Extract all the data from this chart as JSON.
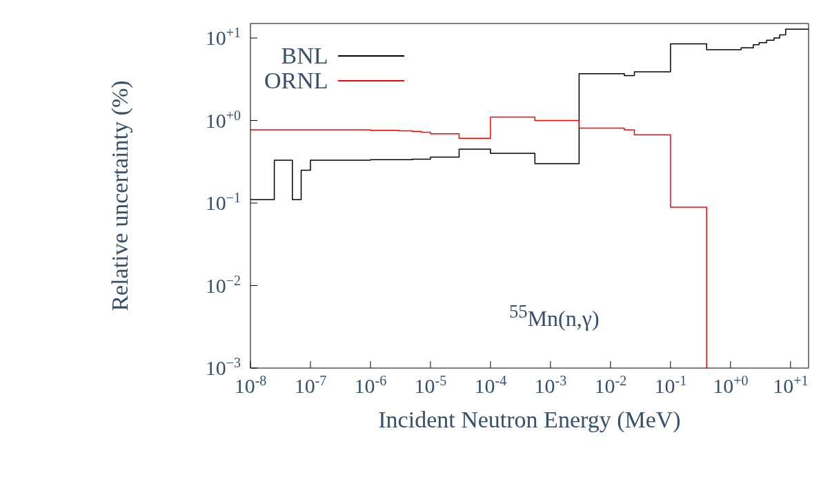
{
  "chart_data": {
    "type": "step",
    "xlabel": "Incident Neutron Energy (MeV)",
    "ylabel": "Relative uncertainty (%)",
    "log": "xy",
    "legend": "top left",
    "xlim": [
      1e-08,
      20
    ],
    "ylim": [
      0.001,
      15
    ],
    "xticks": [
      {
        "value": 1e-08,
        "label": "10$^{-8}$"
      },
      {
        "value": 1e-07,
        "label": "10$^{-7}$"
      },
      {
        "value": 1e-06,
        "label": "10$^{-6}$"
      },
      {
        "value": 1e-05,
        "label": "10$^{-5}$"
      },
      {
        "value": 0.0001,
        "label": "10$^{-4}$"
      },
      {
        "value": 0.001,
        "label": "10$^{-3}$"
      },
      {
        "value": 0.01,
        "label": "10$^{-2}$"
      },
      {
        "value": 0.1,
        "label": "10$^{-1}$"
      },
      {
        "value": 1,
        "label": "10$^{+0}$"
      },
      {
        "value": 10,
        "label": "10$^{+1}$"
      }
    ],
    "yticks": [
      {
        "value": 0.001,
        "label": "10$^{−3}$"
      },
      {
        "value": 0.01,
        "label": "10$^{−2}$"
      },
      {
        "value": 0.1,
        "label": "10$^{−1}$"
      },
      {
        "value": 1,
        "label": "10$^{+0}$"
      },
      {
        "value": 10,
        "label": "10$^{+1}$"
      }
    ],
    "annotations": [
      "$^{55}$Mn(n,γ)"
    ],
    "series": [
      {
        "name": "BNL",
        "color": "#000000",
        "x": [
          1e-08,
          2.5e-08,
          5e-08,
          7e-08,
          1e-07,
          1e-06,
          5e-06,
          1e-05,
          3e-05,
          0.0001,
          0.00055,
          0.003,
          0.017,
          0.025,
          0.1,
          0.4,
          1.5,
          2.4,
          3,
          4,
          5.3,
          6.6,
          8.3,
          20
        ],
        "values": [
          0.11,
          0.33,
          0.11,
          0.25,
          0.33,
          0.335,
          0.34,
          0.36,
          0.45,
          0.4,
          0.3,
          3.7,
          3.5,
          3.9,
          8.5,
          7.2,
          7.6,
          8.3,
          8.8,
          9.4,
          10,
          10.9,
          12.8,
          12.8
        ]
      },
      {
        "name": "ORNL",
        "color": "#ff0000",
        "x": [
          1e-08,
          1e-06,
          3e-06,
          5e-06,
          7e-06,
          1e-05,
          3e-05,
          0.0001,
          0.00055,
          0.003,
          0.017,
          0.025,
          0.1,
          0.4
        ],
        "values": [
          0.77,
          0.76,
          0.75,
          0.74,
          0.72,
          0.69,
          0.61,
          1.1,
          1.0,
          0.81,
          0.77,
          0.67,
          0.089,
          0.001
        ]
      }
    ]
  }
}
